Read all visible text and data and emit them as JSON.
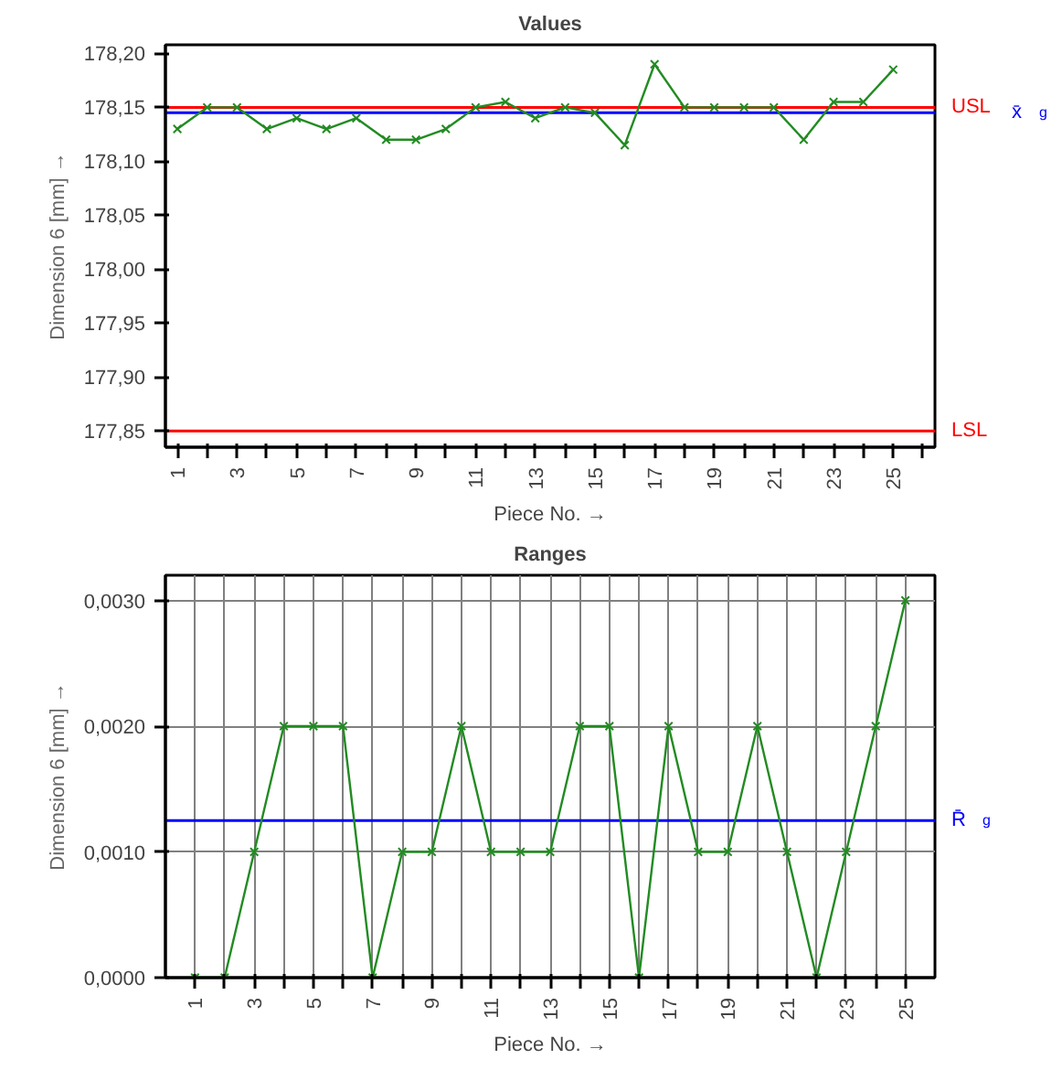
{
  "chart_data": [
    {
      "type": "line",
      "title": "Values",
      "xlabel": "Piece No. →",
      "ylabel": "Dimension 6 [mm] →",
      "x": [
        1,
        2,
        3,
        4,
        5,
        6,
        7,
        8,
        9,
        10,
        11,
        12,
        13,
        14,
        15,
        16,
        17,
        18,
        19,
        20,
        21,
        22,
        23,
        24,
        25
      ],
      "series": [
        {
          "color": "#228b22",
          "values": [
            178.13,
            178.15,
            178.15,
            178.13,
            178.14,
            178.13,
            178.14,
            178.12,
            178.12,
            178.13,
            178.15,
            178.155,
            178.14,
            178.15,
            178.145,
            178.115,
            178.19,
            178.15,
            178.15,
            178.15,
            178.15,
            178.12,
            178.155,
            178.155,
            178.185
          ]
        }
      ],
      "marker": "cross",
      "grid": false,
      "xlim": [
        0.6,
        26.4
      ],
      "xticks": [
        1,
        {
          "value": 2,
          "label": null
        },
        3,
        {
          "value": 4,
          "label": null
        },
        5,
        {
          "value": 6,
          "label": null
        },
        7,
        {
          "value": 8,
          "label": null
        },
        9,
        {
          "value": 10,
          "label": null
        },
        11,
        {
          "value": 12,
          "label": null
        },
        13,
        {
          "value": 14,
          "label": null
        },
        15,
        {
          "value": 16,
          "label": null
        },
        17,
        {
          "value": 18,
          "label": null
        },
        19,
        {
          "value": 20,
          "label": null
        },
        21,
        {
          "value": 22,
          "label": null
        },
        23,
        {
          "value": 24,
          "label": null
        },
        25,
        {
          "value": 26,
          "label": null
        }
      ],
      "ylim": [
        177.835,
        178.208
      ],
      "yticks": [
        {
          "value": 177.85,
          "label": "177,85"
        },
        {
          "value": 177.9,
          "label": "177,90"
        },
        {
          "value": 177.95,
          "label": "177,95"
        },
        {
          "value": 178.0,
          "label": "178,00"
        },
        {
          "value": 178.05,
          "label": "178,05"
        },
        {
          "value": 178.1,
          "label": "178,10"
        },
        {
          "value": 178.15,
          "label": "178,15"
        },
        {
          "value": 178.2,
          "label": "178,20"
        }
      ],
      "ref_lines": [
        {
          "axis": "y",
          "value": 178.15,
          "label": "USL",
          "color": "#ff0000"
        },
        {
          "axis": "y",
          "value": 178.145,
          "label": "x̄$_{g}$",
          "color": "#0000ff"
        },
        {
          "axis": "y",
          "value": 177.85,
          "label": "LSL",
          "color": "#ff0000"
        }
      ]
    },
    {
      "type": "line",
      "title": "Ranges",
      "xlabel": "Piece No. →",
      "ylabel": "Dimension 6 [mm] →",
      "x": [
        1,
        2,
        3,
        4,
        5,
        6,
        7,
        8,
        9,
        10,
        11,
        12,
        13,
        14,
        15,
        16,
        17,
        18,
        19,
        20,
        21,
        22,
        23,
        24,
        25
      ],
      "series": [
        {
          "color": "#228b22",
          "values": [
            0,
            0,
            0.001,
            0.002,
            0.002,
            0.002,
            0,
            0.001,
            0.001,
            0.002,
            0.001,
            0.001,
            0.001,
            0.002,
            0.002,
            0,
            0.002,
            0.001,
            0.001,
            0.002,
            0.001,
            0,
            0.001,
            0.002,
            0.003
          ]
        }
      ],
      "marker": "cross",
      "grid": true,
      "xlim": [
        0,
        26
      ],
      "xticks": [
        1,
        {
          "value": 2,
          "label": null
        },
        3,
        {
          "value": 4,
          "label": null
        },
        5,
        {
          "value": 6,
          "label": null
        },
        7,
        {
          "value": 8,
          "label": null
        },
        9,
        {
          "value": 10,
          "label": null
        },
        11,
        {
          "value": 12,
          "label": null
        },
        13,
        {
          "value": 14,
          "label": null
        },
        15,
        {
          "value": 16,
          "label": null
        },
        17,
        {
          "value": 18,
          "label": null
        },
        19,
        {
          "value": 20,
          "label": null
        },
        21,
        {
          "value": 22,
          "label": null
        },
        23,
        {
          "value": 24,
          "label": null
        },
        25
      ],
      "ylim": [
        0,
        0.0032
      ],
      "yticks": [
        {
          "value": 0,
          "label": "0,0000"
        },
        {
          "value": 0.001,
          "label": "0,0010"
        },
        {
          "value": 0.002,
          "label": "0,0020"
        },
        {
          "value": 0.003,
          "label": "0,0030"
        }
      ],
      "ref_lines": [
        {
          "axis": "y",
          "value": 0.00125,
          "label": "R̄$_{g}$",
          "color": "#0000ff"
        }
      ]
    }
  ]
}
